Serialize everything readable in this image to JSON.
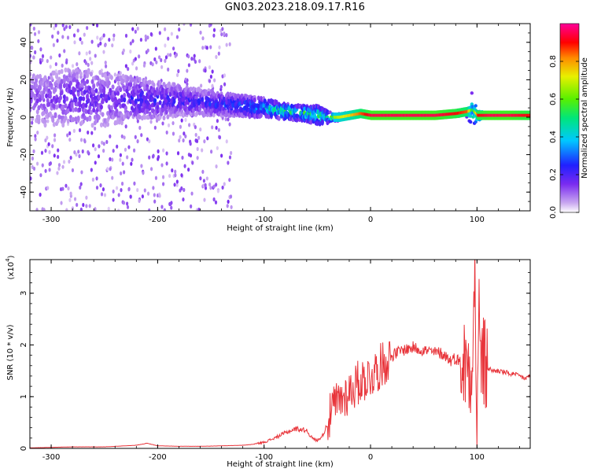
{
  "title": "GN03.2023.218.09.17.R16",
  "colors": {
    "snr_line": "#e8343a",
    "axis": "#000000",
    "colorbar_stops": [
      "#ffffff",
      "#c9a8f0",
      "#7a2bf0",
      "#2020ff",
      "#00c8ff",
      "#00e67a",
      "#58f000",
      "#e8f000",
      "#ff8800",
      "#ff0000",
      "#ff0099"
    ]
  },
  "chart_data": [
    {
      "type": "heatmap",
      "title": "GN03.2023.218.09.17.R16",
      "xlabel": "Height of straight line (km)",
      "ylabel": "Frequency (Hz)",
      "xlim": [
        -320,
        150
      ],
      "ylim": [
        -50,
        50
      ],
      "xticks": [
        -300,
        -200,
        -100,
        0,
        100
      ],
      "yticks": [
        -40,
        -20,
        0,
        20,
        40
      ],
      "colorbar": {
        "label": "Normalized spectral amplitude",
        "range": [
          0,
          1
        ],
        "ticks": [
          "0.0",
          "0.2",
          "0.4",
          "0.6",
          "0.8"
        ]
      },
      "ridge": {
        "description_free": true,
        "x": [
          -320,
          -300,
          -280,
          -260,
          -240,
          -220,
          -200,
          -180,
          -160,
          -140,
          -120,
          -100,
          -80,
          -60,
          -50,
          -40,
          -30,
          -20,
          -10,
          0,
          20,
          40,
          60,
          80,
          90,
          95,
          100,
          110,
          130,
          150
        ],
        "center_hz": [
          10,
          10,
          11,
          10,
          10,
          10,
          9,
          9,
          8,
          7,
          6,
          5,
          3,
          2,
          1,
          0,
          0,
          1,
          2,
          1,
          1,
          1,
          1,
          2,
          3,
          4,
          1,
          1,
          1,
          1
        ],
        "spread_hz": [
          30,
          30,
          30,
          30,
          28,
          22,
          20,
          16,
          14,
          12,
          11,
          10,
          8,
          8,
          10,
          6,
          4,
          3,
          2,
          2,
          2,
          2,
          2,
          3,
          5,
          20,
          6,
          2,
          2,
          2
        ],
        "amplitude": [
          0.15,
          0.15,
          0.2,
          0.2,
          0.18,
          0.25,
          0.25,
          0.25,
          0.25,
          0.3,
          0.35,
          0.45,
          0.55,
          0.55,
          0.6,
          0.6,
          0.7,
          0.75,
          0.85,
          0.95,
          0.95,
          0.95,
          0.95,
          0.9,
          0.85,
          0.5,
          0.9,
          0.95,
          0.95,
          0.9
        ]
      }
    },
    {
      "type": "line",
      "xlabel": "Height of straight line (km)",
      "ylabel": "SNR (10 * v/v)",
      "scale_label": "(x10",
      "scale_exp": "4",
      "scale_close": ")",
      "xlim": [
        -320,
        150
      ],
      "ylim": [
        0,
        3.65
      ],
      "xticks": [
        -300,
        -200,
        -100,
        0,
        100
      ],
      "yticks": [
        0,
        1,
        2,
        3
      ],
      "series": [
        {
          "x": [
            -320,
            -300,
            -280,
            -250,
            -220,
            -210,
            -200,
            -180,
            -160,
            -140,
            -120,
            -110,
            -100,
            -90,
            -80,
            -70,
            -60,
            -55,
            -50,
            -45,
            -40,
            -35,
            -30,
            -25,
            -20,
            -15,
            -10,
            -5,
            0,
            5,
            10,
            15,
            20,
            25,
            30,
            40,
            50,
            60,
            65,
            70,
            75,
            80,
            85,
            90,
            95,
            98,
            100,
            102,
            105,
            110,
            115,
            120,
            130,
            140,
            145,
            150
          ],
          "values": [
            0.01,
            0.02,
            0.03,
            0.03,
            0.06,
            0.1,
            0.05,
            0.04,
            0.04,
            0.05,
            0.06,
            0.08,
            0.12,
            0.2,
            0.3,
            0.38,
            0.35,
            0.2,
            0.15,
            0.25,
            0.5,
            0.8,
            0.9,
            1.0,
            1.1,
            1.2,
            1.3,
            1.35,
            1.4,
            1.5,
            1.6,
            1.7,
            1.8,
            1.85,
            1.9,
            1.95,
            1.9,
            1.85,
            1.85,
            1.8,
            1.7,
            1.75,
            1.65,
            1.6,
            1.7,
            3.3,
            0.4,
            2.5,
            1.6,
            1.55,
            1.5,
            1.5,
            1.45,
            1.4,
            1.35,
            1.4
          ]
        }
      ]
    }
  ]
}
